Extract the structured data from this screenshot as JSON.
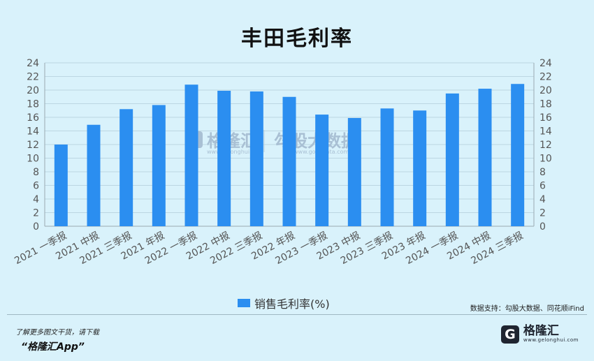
{
  "chart_data": {
    "type": "bar",
    "title": "丰田毛利率",
    "categories": [
      "2021 一季报",
      "2021 中报",
      "2021 三季报",
      "2021 年报",
      "2022 一季报",
      "2022 中报",
      "2022 三季报",
      "2022 年报",
      "2023 一季报",
      "2023 中报",
      "2023 三季报",
      "2023 年报",
      "2024 一季报",
      "2024 中报",
      "2024 三季报"
    ],
    "series": [
      {
        "name": "销售毛利率(%)",
        "values": [
          12.0,
          14.9,
          17.2,
          17.8,
          20.8,
          19.9,
          19.8,
          19.0,
          16.4,
          15.9,
          17.3,
          17.0,
          19.5,
          20.2,
          20.9
        ]
      }
    ],
    "ylim": [
      0,
      24
    ],
    "yticks": [
      0,
      2,
      4,
      6,
      8,
      10,
      12,
      14,
      16,
      18,
      20,
      22,
      24
    ],
    "grid": true,
    "legend": "bottom-center",
    "bar_color": "#2b8ef0"
  },
  "watermark": {
    "brand1": "格隆汇",
    "brand1_url": "www.gelonghui.com",
    "brand2": "勾股大数据",
    "brand2_url": "www.gogudata.com"
  },
  "source_text": "数据支持：勾股大数据、同花顺iFind",
  "footer": {
    "note": "了解更多图文干货，请下载",
    "app": "“格隆汇App”"
  },
  "brand": {
    "icon_letter": "G",
    "name": "格隆汇",
    "url": "www.gelonghui.com"
  }
}
